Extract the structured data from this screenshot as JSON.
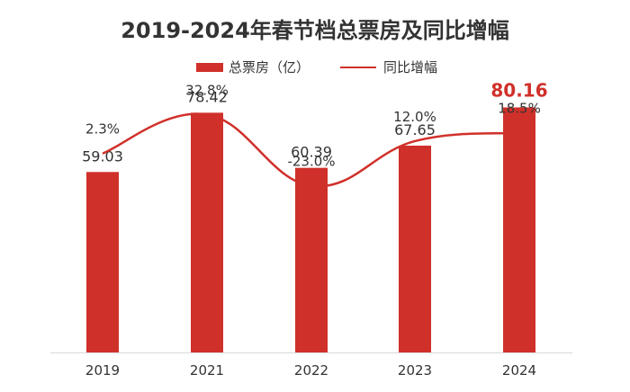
{
  "chart_data": {
    "type": "bar",
    "title": "2019-2024年春节档总票房及同比增幅",
    "categories": [
      "2019",
      "2021",
      "2022",
      "2023",
      "2024"
    ],
    "series": [
      {
        "name": "总票房（亿）",
        "type": "bar",
        "values": [
          59.03,
          78.42,
          60.39,
          67.65,
          80.16
        ],
        "labels": [
          "59.03",
          "78.42",
          "60.39",
          "67.65",
          "80.16"
        ]
      },
      {
        "name": "同比增幅",
        "type": "line",
        "values": [
          2.3,
          32.8,
          -23.0,
          12.0,
          18.5
        ],
        "labels": [
          "2.3%",
          "32.8%",
          "-23.0%",
          "12.0%",
          "18.5%"
        ]
      }
    ],
    "highlight_index": 4,
    "colors": {
      "bar": "#d0302a",
      "line": "#d0302a",
      "label": "#333333",
      "highlight_label": "#d0302a",
      "axis": "#d9d9d9"
    }
  }
}
